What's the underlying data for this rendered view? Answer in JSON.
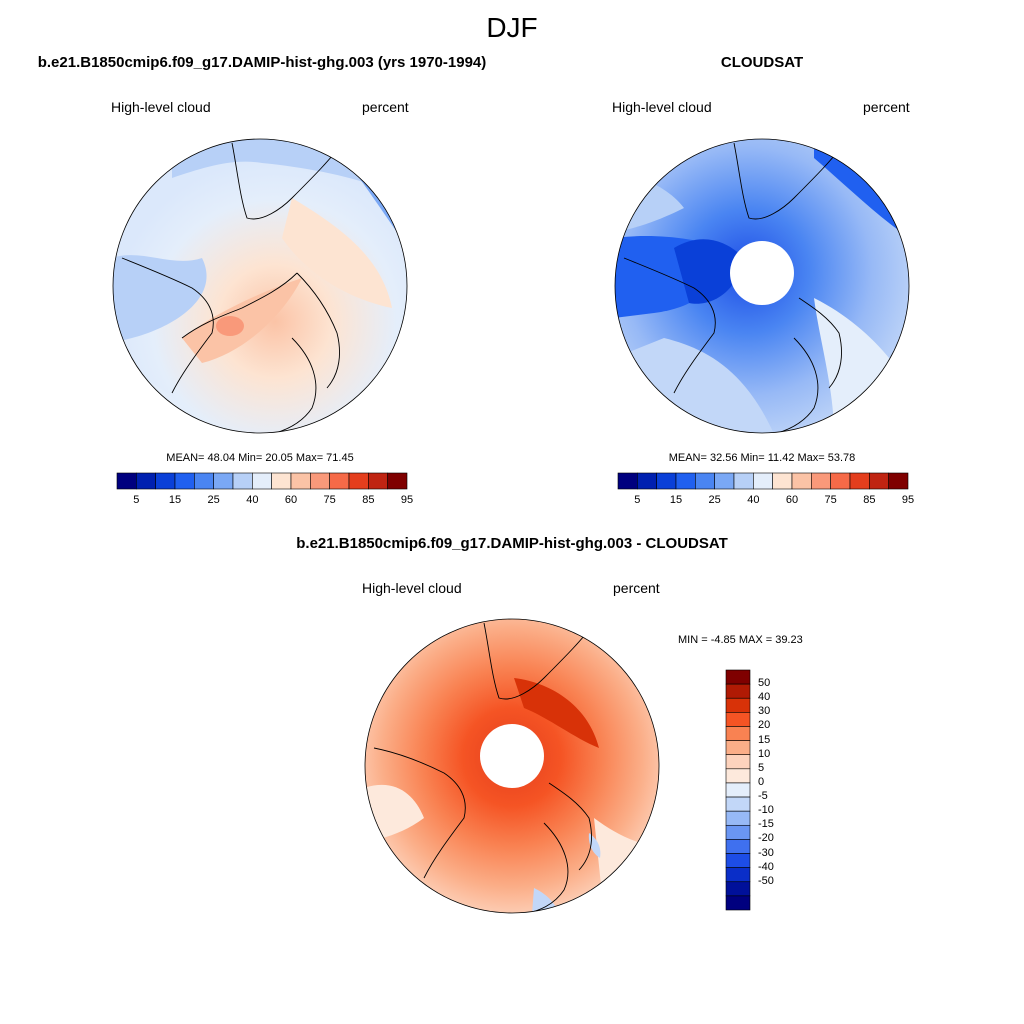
{
  "title": "DJF",
  "palette_abs": [
    "#00007f",
    "#0020b0",
    "#0a40d8",
    "#2060f0",
    "#4a85f2",
    "#7aa8f5",
    "#b7d0f7",
    "#e4eefb",
    "#fde4d2",
    "#fbc3a6",
    "#f9997a",
    "#f66a48",
    "#e43e1d",
    "#c02412",
    "#7f0000"
  ],
  "palette_diff": [
    "#7f0000",
    "#b01a04",
    "#d83208",
    "#f55424",
    "#f98252",
    "#fbae88",
    "#fdd3bd",
    "#fde9dc",
    "#e4eefb",
    "#c2d7f8",
    "#97b9f6",
    "#6a96f3",
    "#3f70ef",
    "#1d4de6",
    "#0a2ec8",
    "#00109a",
    "#00007f"
  ],
  "panels": [
    {
      "title": "b.e21.B1850cmip6.f09_g17.DAMIP-hist-ghg.003 (yrs 1970-1994)",
      "left_label": "High-level cloud",
      "right_label": "percent",
      "stats": "MEAN=  48.04  Min=  20.05  Max=  71.45",
      "colorbar_ticks": [
        "5",
        "15",
        "25",
        "40",
        "60",
        "75",
        "85",
        "95"
      ]
    },
    {
      "title": "CLOUDSAT",
      "left_label": "High-level cloud",
      "right_label": "percent",
      "stats": "MEAN=  32.56  Min=  11.42  Max=  53.78",
      "colorbar_ticks": [
        "5",
        "15",
        "25",
        "40",
        "60",
        "75",
        "85",
        "95"
      ]
    },
    {
      "title": "b.e21.B1850cmip6.f09_g17.DAMIP-hist-ghg.003 - CLOUDSAT",
      "left_label": "High-level cloud",
      "right_label": "percent",
      "stats": "MIN =  -4.85 MAX =  39.23",
      "colorbar_labels": [
        "50",
        "40",
        "30",
        "20",
        "15",
        "10",
        "5",
        "0",
        "-5",
        "-10",
        "-15",
        "-20",
        "-30",
        "-40",
        "-50"
      ]
    }
  ]
}
